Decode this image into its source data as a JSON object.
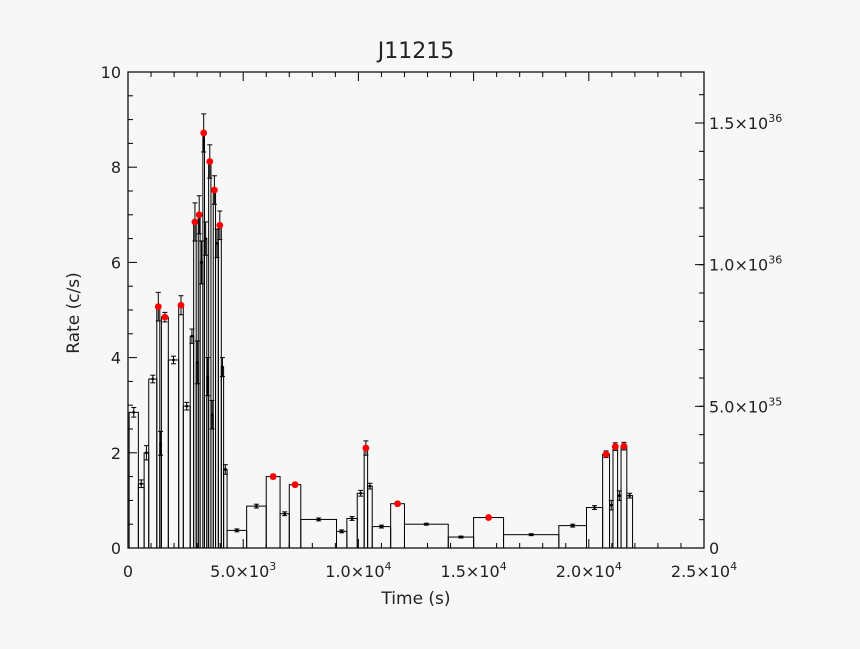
{
  "chart_data": {
    "type": "bar",
    "title": "J11215",
    "xlabel": "Time (s)",
    "ylabel": "Rate (c/s)",
    "xlim": [
      0,
      25000
    ],
    "ylim": [
      0,
      10
    ],
    "y2lim": [
      0,
      1.68e+36
    ],
    "x_tick_labels": [
      {
        "value": 0,
        "text": "0"
      },
      {
        "value": 5000,
        "base": "5.0×10",
        "exp": "3"
      },
      {
        "value": 10000,
        "base": "1.0×10",
        "exp": "4"
      },
      {
        "value": 15000,
        "base": "1.5×10",
        "exp": "4"
      },
      {
        "value": 20000,
        "base": "2.0×10",
        "exp": "4"
      },
      {
        "value": 25000,
        "base": "2.5×10",
        "exp": "4"
      }
    ],
    "y_tick_labels": [
      {
        "value": 0,
        "text": "0"
      },
      {
        "value": 2,
        "text": "2"
      },
      {
        "value": 4,
        "text": "4"
      },
      {
        "value": 6,
        "text": "6"
      },
      {
        "value": 8,
        "text": "8"
      },
      {
        "value": 10,
        "text": "10"
      }
    ],
    "y2_tick_labels": [
      {
        "value": 0,
        "text": "0"
      },
      {
        "value": 5e+35,
        "base": "5.0×10",
        "exp": "35"
      },
      {
        "value": 1e+36,
        "base": "1.0×10",
        "exp": "36"
      },
      {
        "value": 1.5e+36,
        "base": "1.5×10",
        "exp": "36"
      }
    ],
    "bins": [
      {
        "x0": 50,
        "x1": 450,
        "y": 2.85,
        "err": 0.1
      },
      {
        "x0": 450,
        "x1": 700,
        "y": 1.35,
        "err": 0.08
      },
      {
        "x0": 700,
        "x1": 900,
        "y": 2.0,
        "err": 0.15
      },
      {
        "x0": 900,
        "x1": 1250,
        "y": 3.55,
        "err": 0.08
      },
      {
        "x0": 1250,
        "x1": 1380,
        "y": 5.07,
        "err": 0.3,
        "flare": true
      },
      {
        "x0": 1380,
        "x1": 1450,
        "y": 2.2,
        "err": 0.25
      },
      {
        "x0": 1450,
        "x1": 1750,
        "y": 4.85,
        "err": 0.1,
        "flare": true
      },
      {
        "x0": 1750,
        "x1": 2200,
        "y": 3.95,
        "err": 0.08
      },
      {
        "x0": 2200,
        "x1": 2400,
        "y": 5.1,
        "err": 0.2,
        "flare": true
      },
      {
        "x0": 2400,
        "x1": 2700,
        "y": 2.98,
        "err": 0.08
      },
      {
        "x0": 2700,
        "x1": 2850,
        "y": 4.45,
        "err": 0.15
      },
      {
        "x0": 2850,
        "x1": 2960,
        "y": 6.85,
        "err": 0.4,
        "flare": true
      },
      {
        "x0": 2960,
        "x1": 3050,
        "y": 3.9,
        "err": 0.45
      },
      {
        "x0": 3050,
        "x1": 3130,
        "y": 7.0,
        "err": 0.4,
        "flare": true
      },
      {
        "x0": 3130,
        "x1": 3250,
        "y": 6.0,
        "err": 0.45
      },
      {
        "x0": 3250,
        "x1": 3320,
        "y": 8.72,
        "err": 0.4,
        "flare": true
      },
      {
        "x0": 3320,
        "x1": 3420,
        "y": 6.5,
        "err": 0.35
      },
      {
        "x0": 3420,
        "x1": 3500,
        "y": 3.6,
        "err": 0.4
      },
      {
        "x0": 3500,
        "x1": 3600,
        "y": 8.12,
        "err": 0.35,
        "flare": true
      },
      {
        "x0": 3600,
        "x1": 3700,
        "y": 2.8,
        "err": 0.3
      },
      {
        "x0": 3700,
        "x1": 3800,
        "y": 7.52,
        "err": 0.3,
        "flare": true
      },
      {
        "x0": 3800,
        "x1": 3920,
        "y": 6.4,
        "err": 0.3
      },
      {
        "x0": 3920,
        "x1": 4050,
        "y": 6.78,
        "err": 0.3,
        "flare": true
      },
      {
        "x0": 4050,
        "x1": 4150,
        "y": 3.8,
        "err": 0.2
      },
      {
        "x0": 4150,
        "x1": 4300,
        "y": 1.65,
        "err": 0.1
      },
      {
        "x0": 4300,
        "x1": 5150,
        "y": 0.37,
        "err": 0.03
      },
      {
        "x0": 5150,
        "x1": 6000,
        "y": 0.88,
        "err": 0.04
      },
      {
        "x0": 6000,
        "x1": 6600,
        "y": 1.5,
        "err": 0.05,
        "flare": true
      },
      {
        "x0": 6600,
        "x1": 7000,
        "y": 0.72,
        "err": 0.04
      },
      {
        "x0": 7000,
        "x1": 7500,
        "y": 1.33,
        "err": 0.04,
        "flare": true
      },
      {
        "x0": 7500,
        "x1": 9050,
        "y": 0.6,
        "err": 0.03
      },
      {
        "x0": 9050,
        "x1": 9500,
        "y": 0.35,
        "err": 0.03
      },
      {
        "x0": 9500,
        "x1": 9950,
        "y": 0.62,
        "err": 0.04
      },
      {
        "x0": 9950,
        "x1": 10250,
        "y": 1.15,
        "err": 0.06
      },
      {
        "x0": 10250,
        "x1": 10400,
        "y": 2.1,
        "err": 0.15,
        "flare": true
      },
      {
        "x0": 10400,
        "x1": 10600,
        "y": 1.3,
        "err": 0.06
      },
      {
        "x0": 10600,
        "x1": 11400,
        "y": 0.45,
        "err": 0.03
      },
      {
        "x0": 11400,
        "x1": 12000,
        "y": 0.93,
        "err": 0.04,
        "flare": true
      },
      {
        "x0": 12000,
        "x1": 13900,
        "y": 0.5,
        "err": 0.02
      },
      {
        "x0": 13900,
        "x1": 15000,
        "y": 0.23,
        "err": 0.02
      },
      {
        "x0": 15000,
        "x1": 16300,
        "y": 0.64,
        "err": 0.03,
        "flare": true
      },
      {
        "x0": 16300,
        "x1": 18700,
        "y": 0.28,
        "err": 0.02
      },
      {
        "x0": 18700,
        "x1": 19900,
        "y": 0.47,
        "err": 0.03
      },
      {
        "x0": 19900,
        "x1": 20600,
        "y": 0.85,
        "err": 0.04
      },
      {
        "x0": 20600,
        "x1": 20900,
        "y": 1.97,
        "err": 0.07,
        "flare": true
      },
      {
        "x0": 20900,
        "x1": 21050,
        "y": 0.9,
        "err": 0.1
      },
      {
        "x0": 21050,
        "x1": 21250,
        "y": 2.13,
        "err": 0.08,
        "flare": true
      },
      {
        "x0": 21250,
        "x1": 21400,
        "y": 1.1,
        "err": 0.1
      },
      {
        "x0": 21400,
        "x1": 21650,
        "y": 2.14,
        "err": 0.08,
        "flare": true
      },
      {
        "x0": 21650,
        "x1": 21900,
        "y": 1.1,
        "err": 0.05
      }
    ],
    "colors": {
      "flare_marker": "#ff0000",
      "bars": "#000000",
      "background": "#f7f7f7"
    }
  }
}
